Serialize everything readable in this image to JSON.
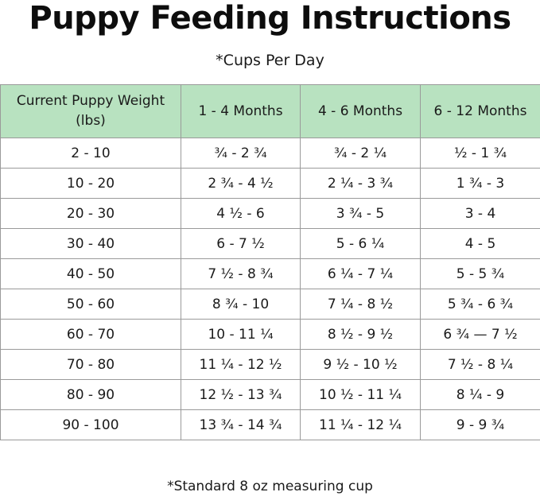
{
  "title": "Puppy Feeding Instructions",
  "subtitle": "*Cups Per Day",
  "table": {
    "headers": [
      "Current Puppy Weight (lbs)",
      "1 - 4 Months",
      "4 - 6 Months",
      "6 - 12 Months"
    ],
    "rows": [
      [
        "2 - 10",
        "¾ - 2 ¾",
        "¾ - 2 ¼",
        "½ - 1 ¾"
      ],
      [
        "10 - 20",
        "2 ¾ - 4 ½",
        "2 ¼ - 3 ¾",
        "1 ¾ - 3"
      ],
      [
        "20 - 30",
        "4 ½ - 6",
        "3 ¾ - 5",
        "3 - 4"
      ],
      [
        "30 - 40",
        "6 - 7 ½",
        "5 - 6 ¼",
        "4 - 5"
      ],
      [
        "40 - 50",
        "7 ½ - 8 ¾",
        "6 ¼ - 7 ¼",
        "5 - 5 ¾"
      ],
      [
        "50 - 60",
        "8 ¾ - 10",
        "7 ¼ - 8 ½",
        "5 ¾ - 6 ¾"
      ],
      [
        "60 - 70",
        "10 - 11 ¼",
        "8 ½ - 9 ½",
        "6 ¾ — 7 ½"
      ],
      [
        "70 - 80",
        "11 ¼ - 12 ½",
        "9 ½ - 10 ½",
        "7 ½ - 8 ¼"
      ],
      [
        "80 - 90",
        "12 ½ - 13 ¾",
        "10 ½ - 11 ¼",
        "8 ¼ - 9"
      ],
      [
        "90 - 100",
        "13 ¾ - 14 ¾",
        "11 ¼ - 12 ¼",
        "9 - 9 ¾"
      ]
    ]
  },
  "footnote": "*Standard 8 oz measuring cup",
  "colors": {
    "header_background": "#b8e2c0",
    "border": "#9a9a9a",
    "text": "#1a1a1a"
  }
}
